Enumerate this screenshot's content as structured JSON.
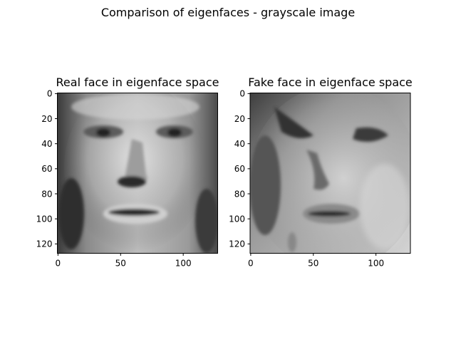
{
  "figure": {
    "suptitle": "Comparison of eigenfaces - grayscale image"
  },
  "chart_data": [
    {
      "type": "heatmap",
      "title": "Real face in eigenface space",
      "colormap": "gray",
      "image_size": [
        128,
        128
      ],
      "xlim": [
        0,
        127
      ],
      "ylim": [
        127,
        0
      ],
      "x_ticks": [
        0,
        50,
        100
      ],
      "y_ticks": [
        0,
        20,
        40,
        60,
        80,
        100,
        120
      ],
      "grid": false,
      "content": "grayscale face reconstruction"
    },
    {
      "type": "heatmap",
      "title": "Fake face in eigenface space",
      "colormap": "gray",
      "image_size": [
        128,
        128
      ],
      "xlim": [
        0,
        127
      ],
      "ylim": [
        127,
        0
      ],
      "x_ticks": [
        0,
        50,
        100
      ],
      "y_ticks": [
        0,
        20,
        40,
        60,
        80,
        100,
        120
      ],
      "grid": false,
      "content": "grayscale face reconstruction"
    }
  ]
}
